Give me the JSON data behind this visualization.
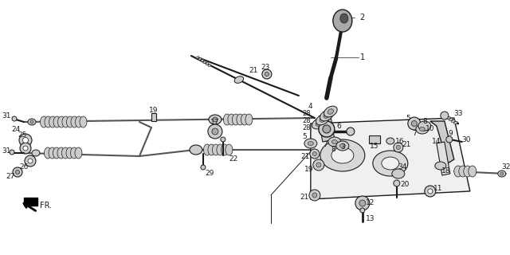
{
  "bg_color": "#ffffff",
  "fig_width": 6.4,
  "fig_height": 3.2,
  "dpi": 100,
  "line_color": "#1a1a1a",
  "label_color": "#1a1a1a",
  "label_fontsize": 6.5,
  "gray": "#888888",
  "light_gray": "#cccccc",
  "mid_gray": "#aaaaaa",
  "dark_gray": "#555555"
}
